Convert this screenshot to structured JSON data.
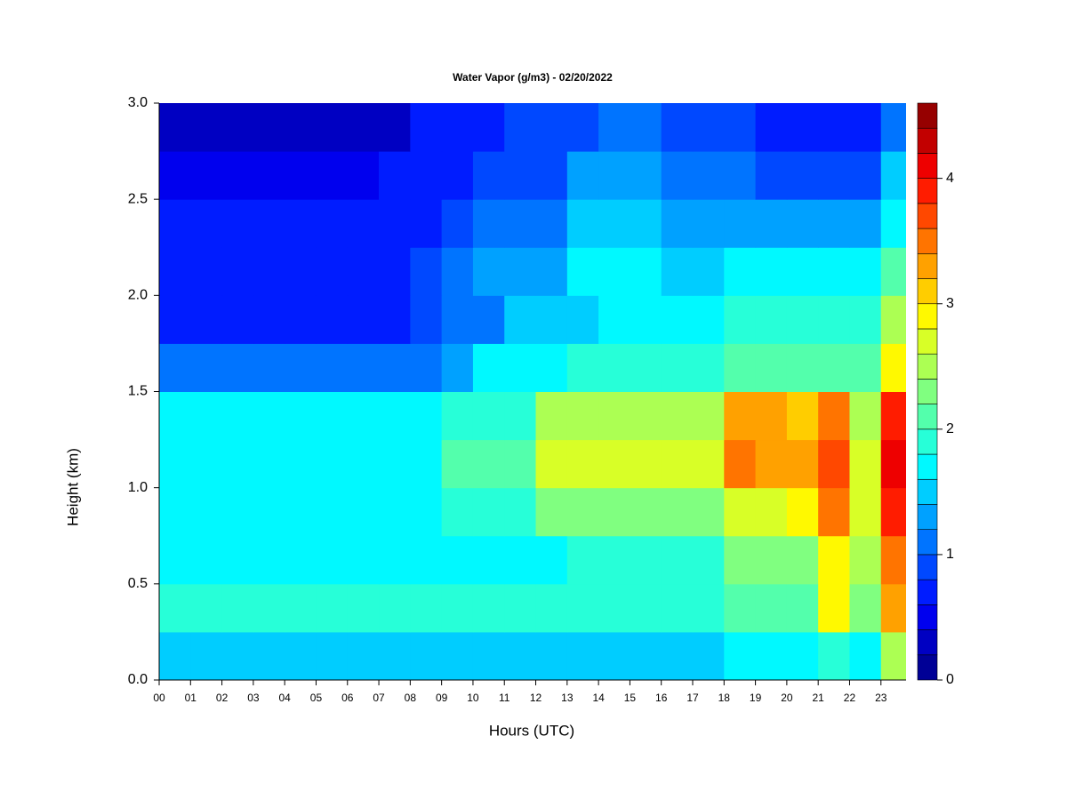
{
  "chart_data": {
    "type": "heatmap",
    "title": "Water Vapor (g/m3) - 02/20/2022",
    "xlabel": "Hours (UTC)",
    "ylabel": "Height (km)",
    "colormap": "jet",
    "x": [
      0.5,
      1.5,
      2.5,
      3.5,
      4.5,
      5.5,
      6.5,
      7.5,
      8.5,
      9.5,
      10.5,
      11.5,
      12.5,
      13.5,
      14.5,
      15.5,
      16.5,
      17.5,
      18.5,
      19.5,
      20.5,
      21.5,
      22.5,
      23.5
    ],
    "y": [
      0.125,
      0.375,
      0.625,
      0.875,
      1.125,
      1.375,
      1.625,
      1.875,
      2.125,
      2.375,
      2.625,
      2.875
    ],
    "values": [
      [
        1.4,
        1.4,
        1.4,
        1.4,
        1.4,
        1.4,
        1.4,
        1.4,
        1.4,
        1.5,
        1.5,
        1.5,
        1.5,
        1.5,
        1.5,
        1.5,
        1.5,
        1.5,
        1.7,
        1.7,
        1.7,
        1.8,
        1.7,
        2.4
      ],
      [
        1.8,
        1.8,
        1.8,
        1.8,
        1.8,
        1.8,
        1.8,
        1.8,
        1.8,
        1.8,
        1.8,
        1.8,
        1.8,
        1.8,
        1.8,
        1.8,
        1.8,
        1.8,
        2.0,
        2.0,
        2.0,
        2.8,
        2.2,
        3.2
      ],
      [
        1.6,
        1.6,
        1.6,
        1.6,
        1.6,
        1.6,
        1.6,
        1.6,
        1.6,
        1.7,
        1.7,
        1.7,
        1.7,
        1.9,
        1.9,
        1.9,
        1.9,
        1.9,
        2.2,
        2.2,
        2.2,
        2.8,
        2.4,
        3.4
      ],
      [
        1.6,
        1.6,
        1.6,
        1.6,
        1.6,
        1.6,
        1.6,
        1.6,
        1.6,
        1.8,
        1.8,
        1.8,
        2.2,
        2.2,
        2.2,
        2.2,
        2.2,
        2.2,
        2.6,
        2.6,
        2.8,
        3.4,
        2.6,
        3.8
      ],
      [
        1.7,
        1.7,
        1.7,
        1.7,
        1.7,
        1.7,
        1.7,
        1.7,
        1.7,
        2.0,
        2.0,
        2.0,
        2.6,
        2.6,
        2.6,
        2.6,
        2.6,
        2.6,
        3.4,
        3.2,
        3.2,
        3.6,
        2.6,
        4.0
      ],
      [
        1.6,
        1.6,
        1.6,
        1.6,
        1.6,
        1.6,
        1.6,
        1.6,
        1.6,
        1.9,
        1.9,
        1.9,
        2.4,
        2.4,
        2.4,
        2.4,
        2.4,
        2.4,
        3.2,
        3.2,
        3.0,
        3.4,
        2.4,
        3.8
      ],
      [
        1.0,
        1.0,
        1.0,
        1.0,
        1.0,
        1.0,
        1.0,
        1.0,
        1.0,
        1.2,
        1.6,
        1.6,
        1.6,
        1.8,
        1.8,
        1.8,
        1.8,
        1.8,
        2.0,
        2.0,
        2.0,
        2.0,
        2.0,
        2.8
      ],
      [
        0.7,
        0.7,
        0.7,
        0.7,
        0.7,
        0.7,
        0.7,
        0.7,
        0.8,
        1.1,
        1.1,
        1.5,
        1.5,
        1.5,
        1.7,
        1.7,
        1.7,
        1.7,
        1.8,
        1.8,
        1.8,
        1.8,
        1.8,
        2.4
      ],
      [
        0.7,
        0.7,
        0.7,
        0.7,
        0.7,
        0.7,
        0.7,
        0.7,
        0.8,
        1.0,
        1.3,
        1.3,
        1.3,
        1.6,
        1.6,
        1.6,
        1.5,
        1.5,
        1.6,
        1.6,
        1.6,
        1.6,
        1.6,
        2.0
      ],
      [
        0.6,
        0.6,
        0.6,
        0.6,
        0.6,
        0.6,
        0.6,
        0.6,
        0.6,
        0.8,
        1.1,
        1.1,
        1.1,
        1.4,
        1.4,
        1.4,
        1.2,
        1.2,
        1.3,
        1.2,
        1.2,
        1.2,
        1.2,
        1.6
      ],
      [
        0.4,
        0.4,
        0.4,
        0.4,
        0.4,
        0.4,
        0.4,
        0.6,
        0.6,
        0.6,
        0.9,
        0.9,
        0.9,
        1.2,
        1.2,
        1.2,
        1.0,
        1.0,
        1.1,
        0.9,
        0.9,
        0.9,
        0.9,
        1.4
      ],
      [
        0.2,
        0.2,
        0.2,
        0.2,
        0.2,
        0.2,
        0.2,
        0.2,
        0.6,
        0.6,
        0.6,
        0.8,
        0.8,
        0.8,
        1.0,
        1.0,
        0.8,
        0.8,
        0.9,
        0.7,
        0.7,
        0.7,
        0.7,
        1.1
      ]
    ],
    "xlim": [
      0,
      23.8
    ],
    "ylim": [
      0,
      3
    ],
    "xticks": [
      {
        "value": 0,
        "label": "00"
      },
      {
        "value": 1,
        "label": "01"
      },
      {
        "value": 2,
        "label": "02"
      },
      {
        "value": 3,
        "label": "03"
      },
      {
        "value": 4,
        "label": "04"
      },
      {
        "value": 5,
        "label": "05"
      },
      {
        "value": 6,
        "label": "06"
      },
      {
        "value": 7,
        "label": "07"
      },
      {
        "value": 8,
        "label": "08"
      },
      {
        "value": 9,
        "label": "09"
      },
      10,
      11,
      12,
      13,
      14,
      15,
      16,
      17,
      18,
      19,
      20,
      21,
      22,
      23
    ],
    "yticks": [
      {
        "value": 0,
        "label": "0.0"
      },
      0.5,
      {
        "value": 1,
        "label": "1.0"
      },
      1.5,
      {
        "value": 2,
        "label": "2.0"
      },
      2.5,
      {
        "value": 3,
        "label": "3.0"
      }
    ],
    "levels": [
      0,
      0.2,
      0.4,
      0.6,
      0.8,
      1,
      1.2,
      1.4,
      1.6,
      1.8,
      2,
      2.2,
      2.4,
      2.6,
      2.8,
      3,
      3.2,
      3.4,
      3.6,
      3.8,
      4,
      4.2,
      4.4,
      4.6
    ],
    "zticks": [
      0,
      1,
      2,
      3,
      4
    ]
  }
}
